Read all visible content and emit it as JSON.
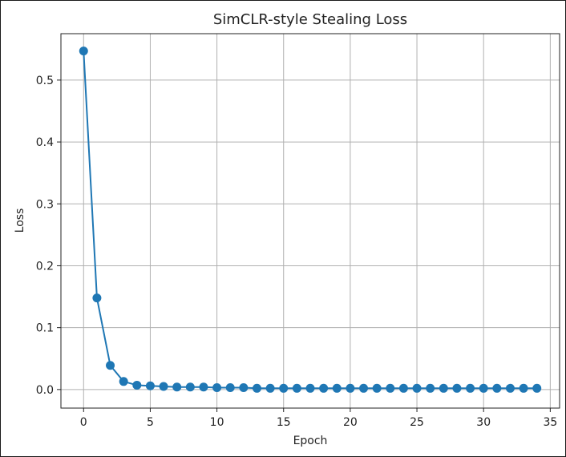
{
  "chart_data": {
    "type": "line",
    "title": "SimCLR-style Stealing Loss",
    "xlabel": "Epoch",
    "ylabel": "Loss",
    "xlim": [
      -1.7,
      35.7
    ],
    "ylim": [
      -0.03,
      0.575
    ],
    "xticks": [
      0,
      5,
      10,
      15,
      20,
      25,
      30,
      35
    ],
    "yticks": [
      0.0,
      0.1,
      0.2,
      0.3,
      0.4,
      0.5
    ],
    "ytick_labels": [
      "0.0",
      "0.1",
      "0.2",
      "0.3",
      "0.4",
      "0.5"
    ],
    "grid": true,
    "marker": "circle",
    "color": "#1f77b4",
    "series": [
      {
        "x": [
          0,
          1,
          2,
          3,
          4,
          5,
          6,
          7,
          8,
          9,
          10,
          11,
          12,
          13,
          14,
          15,
          16,
          17,
          18,
          19,
          20,
          21,
          22,
          23,
          24,
          25,
          26,
          27,
          28,
          29,
          30,
          31,
          32,
          33,
          34
        ],
        "values": [
          0.547,
          0.148,
          0.039,
          0.013,
          0.007,
          0.006,
          0.005,
          0.004,
          0.004,
          0.004,
          0.003,
          0.003,
          0.003,
          0.002,
          0.002,
          0.002,
          0.002,
          0.002,
          0.002,
          0.002,
          0.002,
          0.002,
          0.002,
          0.002,
          0.002,
          0.002,
          0.002,
          0.002,
          0.002,
          0.002,
          0.002,
          0.002,
          0.002,
          0.002,
          0.002
        ]
      }
    ]
  }
}
